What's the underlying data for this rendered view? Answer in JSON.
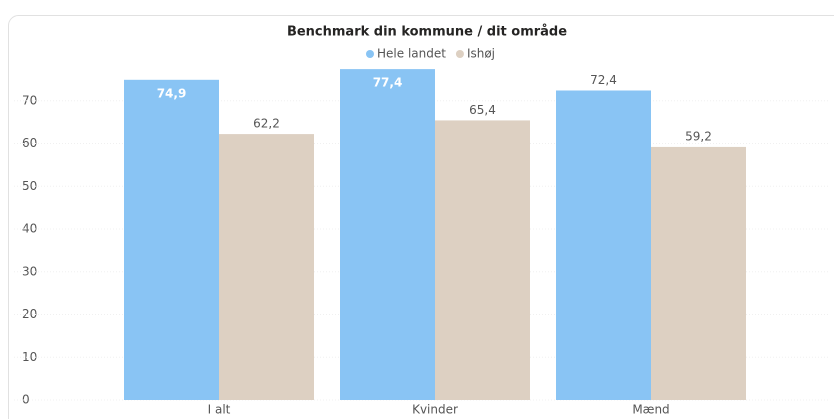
{
  "chart_data": {
    "type": "bar",
    "title": "Benchmark din kommune / dit område",
    "categories": [
      "I alt",
      "Kvinder",
      "Mænd"
    ],
    "series": [
      {
        "name": "Hele landet",
        "color": "#89c4f4",
        "values": [
          74.9,
          77.4,
          72.4
        ],
        "value_labels": [
          "74,9",
          "77,4",
          "72,4"
        ]
      },
      {
        "name": "Ishøj",
        "color": "#ddd0c2",
        "values": [
          62.2,
          65.4,
          59.2
        ],
        "value_labels": [
          "62,2",
          "65,4",
          "59,2"
        ]
      }
    ],
    "ylim": [
      0,
      80
    ],
    "yticks": [
      0,
      10,
      20,
      30,
      40,
      50,
      60,
      70
    ],
    "grid": true
  }
}
